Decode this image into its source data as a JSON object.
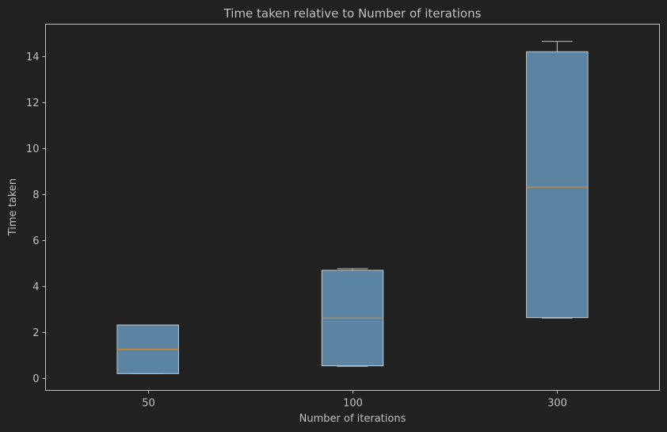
{
  "chart_data": {
    "type": "box",
    "title": "Time taken relative to Number of iterations",
    "xlabel": "Number of iterations",
    "ylabel": "Time taken",
    "categories": [
      "50",
      "100",
      "300"
    ],
    "ylim": [
      -0.55,
      15.4
    ],
    "yticks": [
      0,
      2,
      4,
      6,
      8,
      10,
      12,
      14
    ],
    "boxes": [
      {
        "category": "50",
        "whisker_low": 0.18,
        "q1": 0.18,
        "median": 1.24,
        "q3": 2.3,
        "whisker_high": 2.3
      },
      {
        "category": "100",
        "whisker_low": 0.5,
        "q1": 0.52,
        "median": 2.6,
        "q3": 4.68,
        "whisker_high": 4.75
      },
      {
        "category": "300",
        "whisker_low": 2.6,
        "q1": 2.62,
        "median": 8.3,
        "q3": 14.2,
        "whisker_high": 14.65
      }
    ],
    "grid": false,
    "colors": {
      "background": "#212121",
      "box_fill": "#5b84a3",
      "box_edge": "#c8c8c8",
      "median": "#c9883a",
      "whisker": "#c8c8c8",
      "axes": "#c0c0c0",
      "text": "#c0c0c0"
    }
  }
}
